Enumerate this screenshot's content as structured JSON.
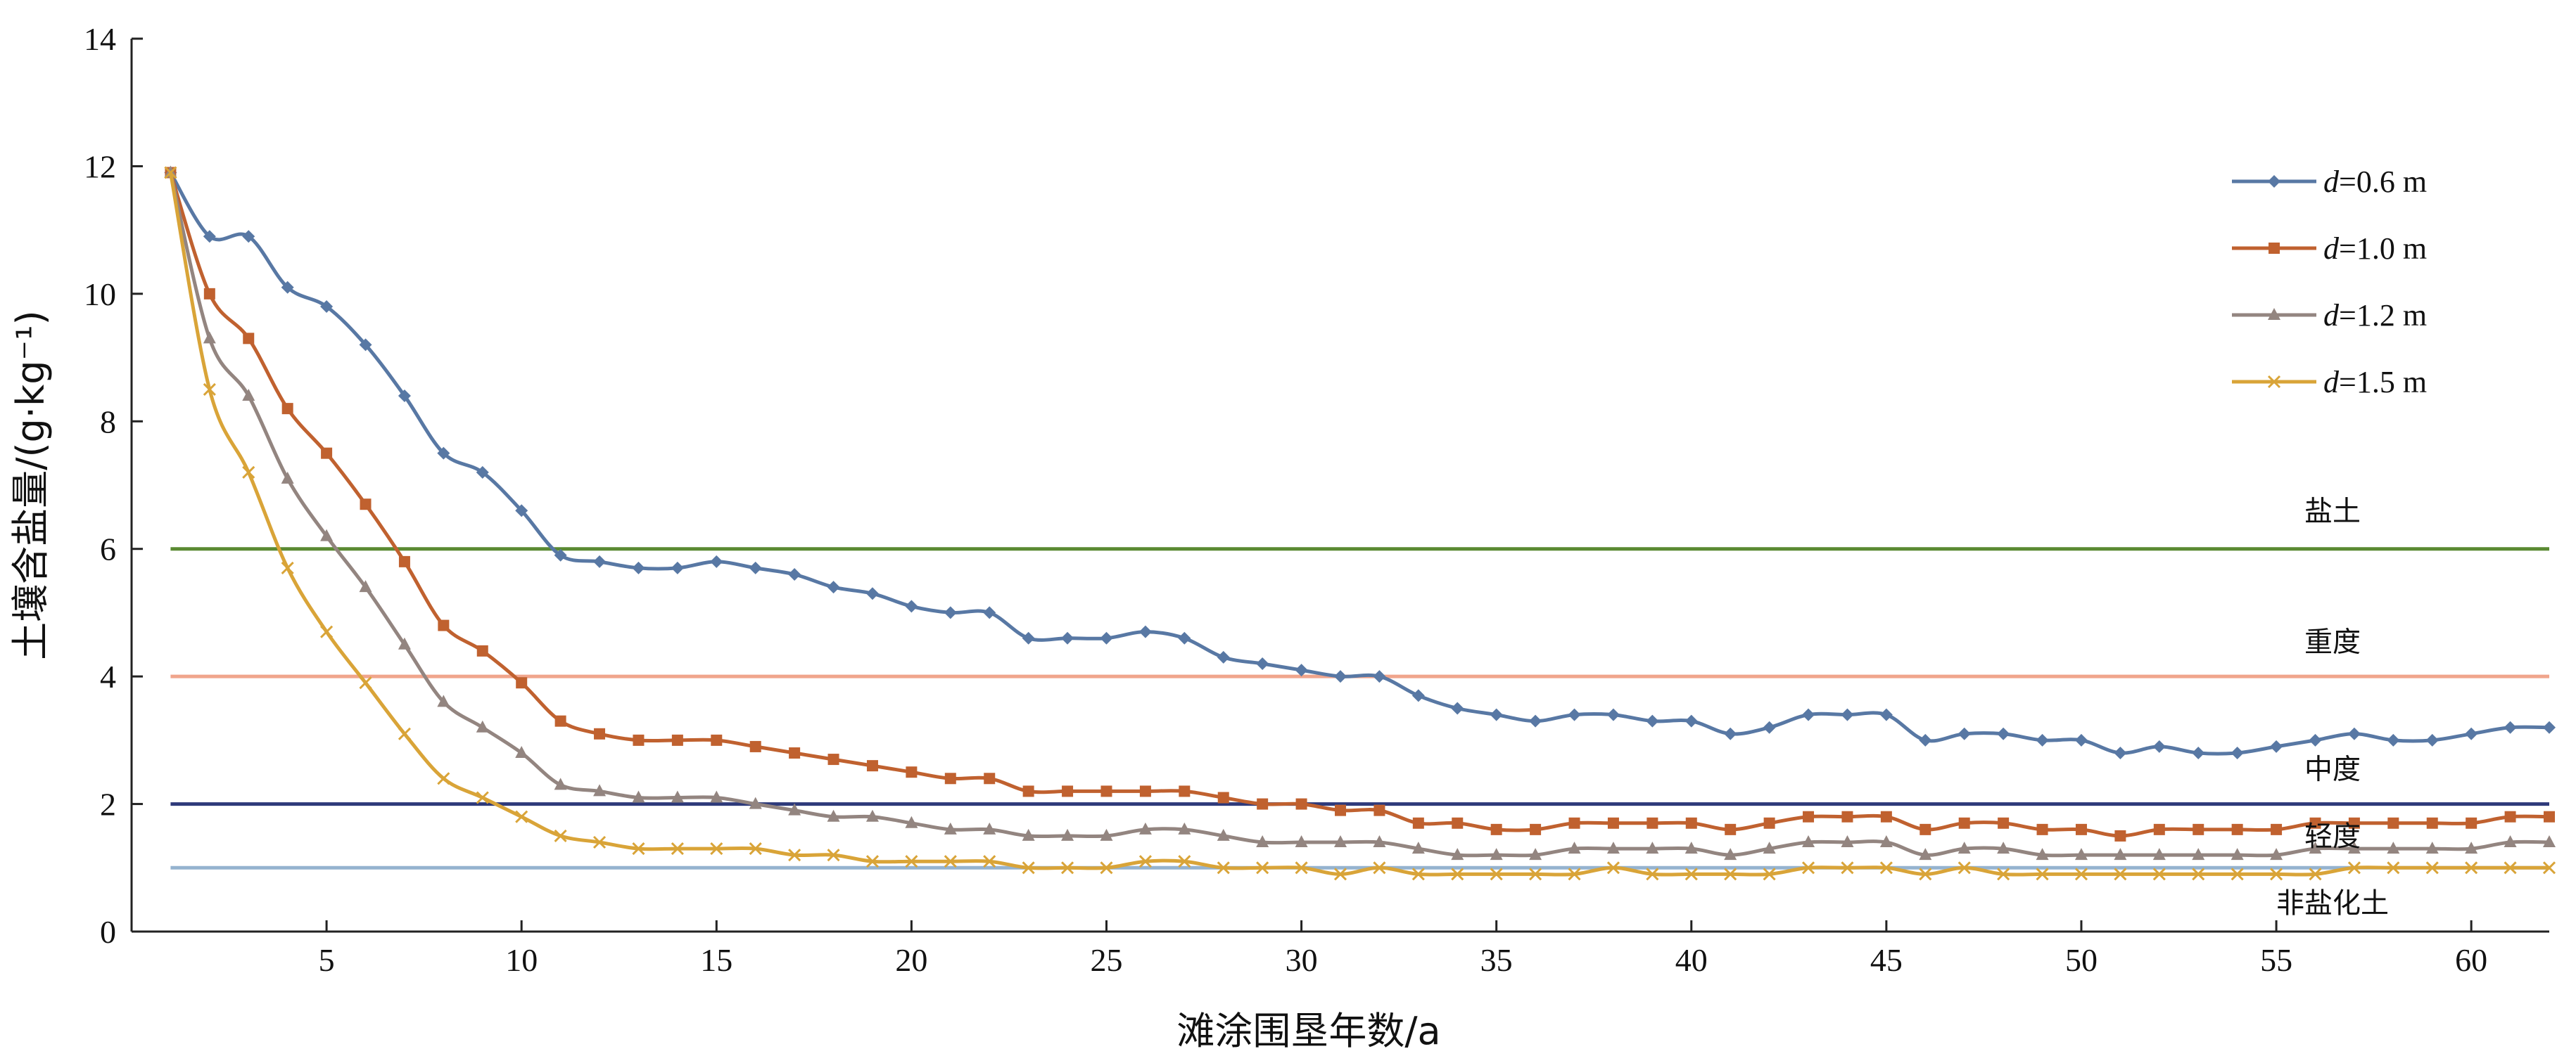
{
  "chart_data": {
    "type": "line",
    "xlabel": "滩涂围垦年数/a",
    "ylabel": "土壤含盐量/(g·kg⁻¹)",
    "xlim": [
      0,
      62
    ],
    "ylim": [
      0,
      14
    ],
    "xticks": [
      5,
      10,
      15,
      20,
      25,
      30,
      35,
      40,
      45,
      50,
      55,
      60
    ],
    "yticks": [
      0,
      2,
      4,
      6,
      8,
      10,
      12,
      14
    ],
    "x_start": 1,
    "thresholds": [
      {
        "name": "盐土",
        "value": 6,
        "color": "#5a8a32"
      },
      {
        "name": "重度",
        "value": 4,
        "color": "#f0a58c"
      },
      {
        "name": "中度",
        "value": 2,
        "color": "#2e3a7a"
      },
      {
        "name": "轻度",
        "value": 1,
        "color": "#95b3cf"
      }
    ],
    "zone_labels": [
      "盐土",
      "重度",
      "中度",
      "轻度",
      "非盐化土"
    ],
    "legend": {
      "placement": "top-right"
    },
    "series": [
      {
        "name_italic": "d",
        "name_rest": "=0.6 m",
        "color": "#5878a4",
        "marker": "diamond",
        "values": [
          11.9,
          10.9,
          10.9,
          10.1,
          9.8,
          9.2,
          8.4,
          7.5,
          7.2,
          6.6,
          5.9,
          5.8,
          5.7,
          5.7,
          5.8,
          5.7,
          5.6,
          5.4,
          5.3,
          5.1,
          5.0,
          5.0,
          4.6,
          4.6,
          4.6,
          4.7,
          4.6,
          4.3,
          4.2,
          4.1,
          4.0,
          4.0,
          3.7,
          3.5,
          3.4,
          3.3,
          3.4,
          3.4,
          3.3,
          3.3,
          3.1,
          3.2,
          3.4,
          3.4,
          3.4,
          3.0,
          3.1,
          3.1,
          3.0,
          3.0,
          2.8,
          2.9,
          2.8,
          2.8,
          2.9,
          3.0,
          3.1,
          3.0,
          3.0,
          3.1,
          3.2,
          3.2
        ]
      },
      {
        "name_italic": "d",
        "name_rest": "=1.0 m",
        "color": "#c0612f",
        "marker": "square",
        "values": [
          11.9,
          10.0,
          9.3,
          8.2,
          7.5,
          6.7,
          5.8,
          4.8,
          4.4,
          3.9,
          3.3,
          3.1,
          3.0,
          3.0,
          3.0,
          2.9,
          2.8,
          2.7,
          2.6,
          2.5,
          2.4,
          2.4,
          2.2,
          2.2,
          2.2,
          2.2,
          2.2,
          2.1,
          2.0,
          2.0,
          1.9,
          1.9,
          1.7,
          1.7,
          1.6,
          1.6,
          1.7,
          1.7,
          1.7,
          1.7,
          1.6,
          1.7,
          1.8,
          1.8,
          1.8,
          1.6,
          1.7,
          1.7,
          1.6,
          1.6,
          1.5,
          1.6,
          1.6,
          1.6,
          1.6,
          1.7,
          1.7,
          1.7,
          1.7,
          1.7,
          1.8,
          1.8
        ]
      },
      {
        "name_italic": "d",
        "name_rest": "=1.2 m",
        "color": "#938580",
        "marker": "triangle",
        "values": [
          11.9,
          9.3,
          8.4,
          7.1,
          6.2,
          5.4,
          4.5,
          3.6,
          3.2,
          2.8,
          2.3,
          2.2,
          2.1,
          2.1,
          2.1,
          2.0,
          1.9,
          1.8,
          1.8,
          1.7,
          1.6,
          1.6,
          1.5,
          1.5,
          1.5,
          1.6,
          1.6,
          1.5,
          1.4,
          1.4,
          1.4,
          1.4,
          1.3,
          1.2,
          1.2,
          1.2,
          1.3,
          1.3,
          1.3,
          1.3,
          1.2,
          1.3,
          1.4,
          1.4,
          1.4,
          1.2,
          1.3,
          1.3,
          1.2,
          1.2,
          1.2,
          1.2,
          1.2,
          1.2,
          1.2,
          1.3,
          1.3,
          1.3,
          1.3,
          1.3,
          1.4,
          1.4
        ]
      },
      {
        "name_italic": "d",
        "name_rest": "=1.5 m",
        "color": "#d9a438",
        "marker": "x",
        "values": [
          11.9,
          8.5,
          7.2,
          5.7,
          4.7,
          3.9,
          3.1,
          2.4,
          2.1,
          1.8,
          1.5,
          1.4,
          1.3,
          1.3,
          1.3,
          1.3,
          1.2,
          1.2,
          1.1,
          1.1,
          1.1,
          1.1,
          1.0,
          1.0,
          1.0,
          1.1,
          1.1,
          1.0,
          1.0,
          1.0,
          0.9,
          1.0,
          0.9,
          0.9,
          0.9,
          0.9,
          0.9,
          1.0,
          0.9,
          0.9,
          0.9,
          0.9,
          1.0,
          1.0,
          1.0,
          0.9,
          1.0,
          0.9,
          0.9,
          0.9,
          0.9,
          0.9,
          0.9,
          0.9,
          0.9,
          0.9,
          1.0,
          1.0,
          1.0,
          1.0,
          1.0,
          1.0
        ]
      }
    ]
  }
}
